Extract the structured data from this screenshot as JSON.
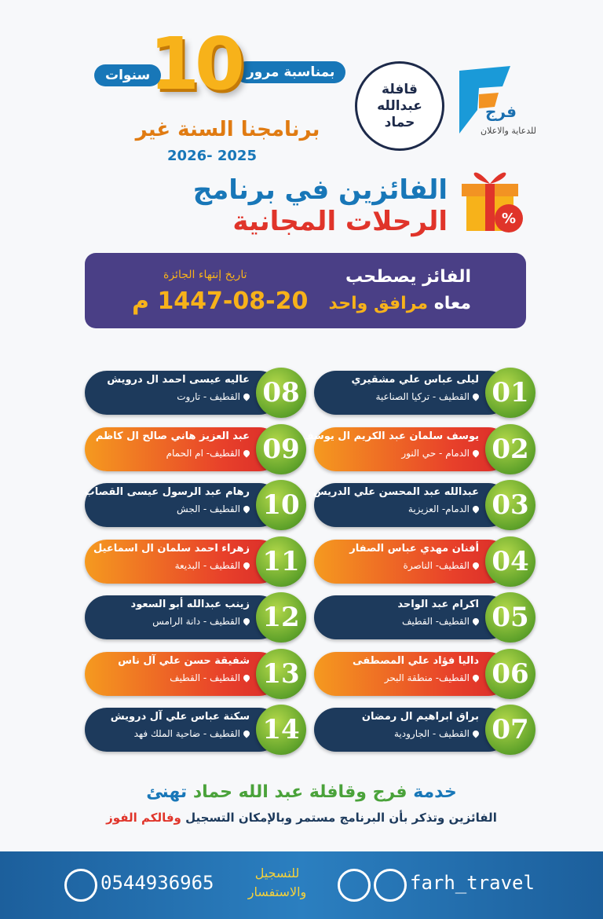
{
  "header": {
    "anniversary_prefix": "بمناسبة مرور",
    "anniversary_number": "10",
    "anniversary_suffix": "سنوات",
    "slogan": "برنامجنا السنة غير",
    "season": "2025 -2026"
  },
  "logos": {
    "caravan": [
      "قافلة",
      "عبدالله",
      "حماد"
    ],
    "brand_name": "فرج",
    "brand_tagline": "للدعاية والاعلان"
  },
  "title": {
    "line1": "الفائزين في برنامج",
    "line2": "الرحلات المجانية"
  },
  "notice": {
    "companion_line1": "الفائز يصطحب",
    "companion_prefix": "معاه",
    "companion_highlight": "مرافق واحد",
    "expiry_label": "تاريخ إنتهاء الجائزة",
    "expiry_date": "1447-08-20 م"
  },
  "winners": [
    {
      "number": "01",
      "name": "ليلى عباس علي مشقيري",
      "location": "القطيف - تركيا الصناعية"
    },
    {
      "number": "02",
      "name": "يوسف سلمان عبد الكريم ال يوسف",
      "location": "الدمام - حي النور"
    },
    {
      "number": "03",
      "name": "عبدالله عبد المحسن علي الدريس",
      "location": "الدمام- العزيزية"
    },
    {
      "number": "04",
      "name": "أفنان مهدي عباس الصفار",
      "location": "القطيف- الناصرة"
    },
    {
      "number": "05",
      "name": "اكرام عبد الواحد",
      "location": "القطيف- القطيف"
    },
    {
      "number": "06",
      "name": "داليا فؤاد علي المصطفى",
      "location": "القطيف- منطقة البحر"
    },
    {
      "number": "07",
      "name": "براق ابراهيم ال رمضان",
      "location": "القطيف - الجارودية"
    },
    {
      "number": "08",
      "name": "عاليه عيسى احمد ال درويش",
      "location": "القطيف - تاروت"
    },
    {
      "number": "09",
      "name": "عبد العزيز هاني صالح ال كاظم",
      "location": "القطيف- ام الحمام"
    },
    {
      "number": "10",
      "name": "رهام عبد الرسول عيسى القصاب",
      "location": "القطيف - الجش"
    },
    {
      "number": "11",
      "name": "زهراء احمد سلمان ال اسماعيل",
      "location": "القطيف - البديعة"
    },
    {
      "number": "12",
      "name": "زينب عبدالله أبو السعود",
      "location": "القطيف - دانة الرامس"
    },
    {
      "number": "13",
      "name": "شفيقة حسن علي آل ناس",
      "location": "القطيف - القطيف"
    },
    {
      "number": "14",
      "name": "سكنة عباس علي آل درويش",
      "location": "القطيف - ضاحية الملك فهد"
    }
  ],
  "closing": {
    "line1_start": "خدمة",
    "line1_brand": "فرج",
    "line1_caravan": "وقافلة عبد الله حماد",
    "line1_end": "تهنئ",
    "line2": "الفائزين وتذكر بأن البرنامج مستمر وبالإمكان التسجيل",
    "line2_highlight": "وفالكم الفوز"
  },
  "footer": {
    "phone": "0544936965",
    "contact_label": "للتسجيل والاستفسار",
    "handle": "farh_travel"
  }
}
